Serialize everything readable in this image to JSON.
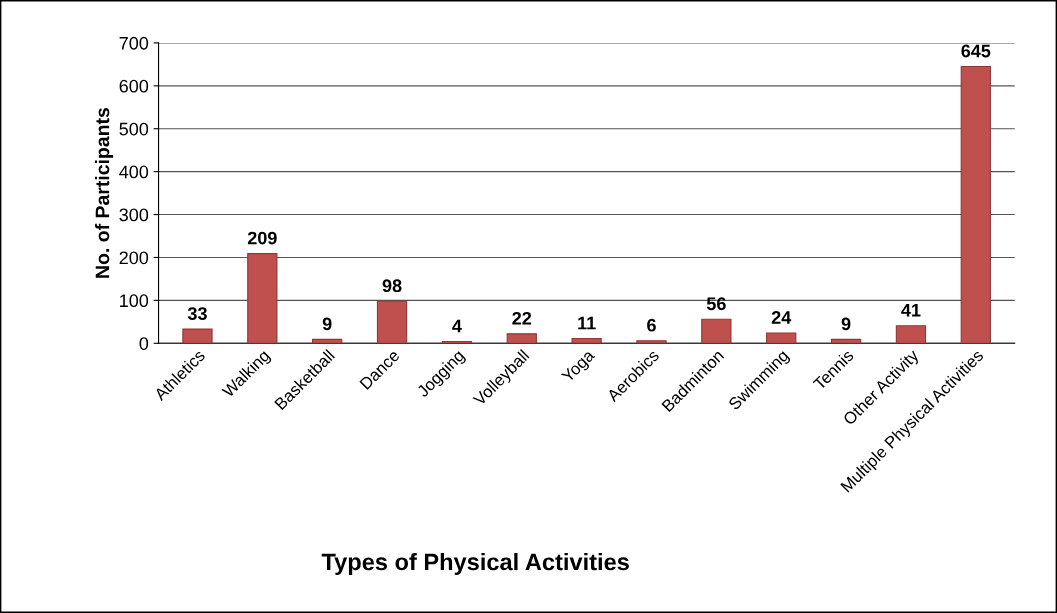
{
  "chart_data": {
    "type": "bar",
    "xlabel": "Types of Physical Activities",
    "ylabel": "No. of Participants",
    "categories": [
      "Athletics",
      "Walking",
      "Basketball",
      "Dance",
      "Jogging",
      "Volleyball",
      "Yoga",
      "Aerobics",
      "Badminton",
      "Swimming",
      "Tennis",
      "Other Activity",
      "Multiple Physical Activities"
    ],
    "values": [
      33,
      209,
      9,
      98,
      4,
      22,
      11,
      6,
      56,
      24,
      9,
      41,
      645
    ],
    "color": "#c0504d",
    "ylim": [
      0,
      700
    ],
    "yticks": [
      0,
      100,
      200,
      300,
      400,
      500,
      600,
      700
    ],
    "grid": "y",
    "data_labels": true
  }
}
